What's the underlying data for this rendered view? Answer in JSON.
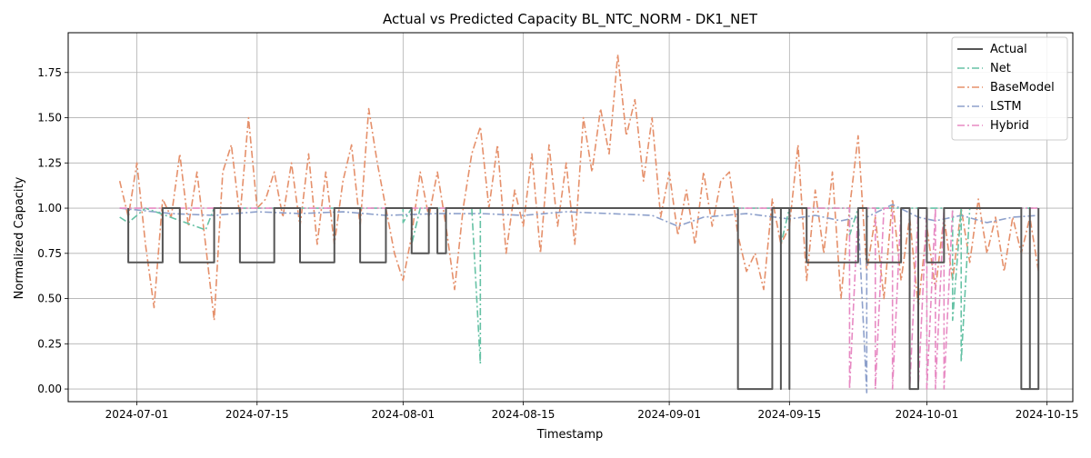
{
  "chart_data": {
    "type": "line",
    "title": "Actual vs Predicted Capacity BL_NTC_NORM - DK1_NET",
    "xlabel": "Timestamp",
    "ylabel": "Normalized Capacity",
    "x_range": [
      "2024-06-23",
      "2024-10-18"
    ],
    "ylim": [
      -0.07,
      1.97
    ],
    "x_ticks": [
      {
        "date": "2024-07-01",
        "label": "2024-07-01"
      },
      {
        "date": "2024-07-15",
        "label": "2024-07-15"
      },
      {
        "date": "2024-08-01",
        "label": "2024-08-01"
      },
      {
        "date": "2024-08-15",
        "label": "2024-08-15"
      },
      {
        "date": "2024-09-01",
        "label": "2024-09-01"
      },
      {
        "date": "2024-09-15",
        "label": "2024-09-15"
      },
      {
        "date": "2024-10-01",
        "label": "2024-10-01"
      },
      {
        "date": "2024-10-15",
        "label": "2024-10-15"
      }
    ],
    "y_ticks": [
      {
        "value": 0.0,
        "label": "0.00"
      },
      {
        "value": 0.25,
        "label": "0.25"
      },
      {
        "value": 0.5,
        "label": "0.50"
      },
      {
        "value": 0.75,
        "label": "0.75"
      },
      {
        "value": 1.0,
        "label": "1.00"
      },
      {
        "value": 1.25,
        "label": "1.25"
      },
      {
        "value": 1.5,
        "label": "1.50"
      },
      {
        "value": 1.75,
        "label": "1.75"
      }
    ],
    "grid": true,
    "legend_position": "top-right",
    "series": [
      {
        "name": "Actual",
        "color": "#555555",
        "style": "solid",
        "points": [
          [
            "2024-06-30",
            1.0
          ],
          [
            "2024-06-30",
            0.7
          ],
          [
            "2024-07-04",
            0.7
          ],
          [
            "2024-07-04",
            1.0
          ],
          [
            "2024-07-06",
            1.0
          ],
          [
            "2024-07-06",
            0.7
          ],
          [
            "2024-07-10",
            0.7
          ],
          [
            "2024-07-10",
            1.0
          ],
          [
            "2024-07-13",
            1.0
          ],
          [
            "2024-07-13",
            0.7
          ],
          [
            "2024-07-17",
            0.7
          ],
          [
            "2024-07-17",
            1.0
          ],
          [
            "2024-07-20",
            1.0
          ],
          [
            "2024-07-20",
            0.7
          ],
          [
            "2024-07-24",
            0.7
          ],
          [
            "2024-07-24",
            1.0
          ],
          [
            "2024-07-27",
            1.0
          ],
          [
            "2024-07-27",
            0.7
          ],
          [
            "2024-07-30",
            0.7
          ],
          [
            "2024-07-30",
            1.0
          ],
          [
            "2024-08-02",
            1.0
          ],
          [
            "2024-08-02",
            0.75
          ],
          [
            "2024-08-04",
            0.75
          ],
          [
            "2024-08-04",
            1.0
          ],
          [
            "2024-08-05",
            1.0
          ],
          [
            "2024-08-05",
            0.75
          ],
          [
            "2024-08-06",
            0.75
          ],
          [
            "2024-08-06",
            1.0
          ],
          [
            "2024-09-09",
            1.0
          ],
          [
            "2024-09-09",
            0.0
          ],
          [
            "2024-09-13",
            0.0
          ],
          [
            "2024-09-13",
            1.0
          ],
          [
            "2024-09-14",
            1.0
          ],
          [
            "2024-09-14",
            0.0
          ],
          [
            "2024-09-14",
            0.0
          ],
          [
            "2024-09-14",
            1.0
          ],
          [
            "2024-09-15",
            1.0
          ],
          [
            "2024-09-15",
            0.0
          ],
          [
            "2024-09-15",
            0.0
          ],
          [
            "2024-09-15",
            1.0
          ],
          [
            "2024-09-17",
            1.0
          ],
          [
            "2024-09-17",
            0.7
          ],
          [
            "2024-09-23",
            0.7
          ],
          [
            "2024-09-23",
            1.0
          ],
          [
            "2024-09-24",
            1.0
          ],
          [
            "2024-09-24",
            0.7
          ],
          [
            "2024-09-28",
            0.7
          ],
          [
            "2024-09-28",
            1.0
          ],
          [
            "2024-09-29",
            1.0
          ],
          [
            "2024-09-29",
            0.0
          ],
          [
            "2024-09-30",
            0.0
          ],
          [
            "2024-09-30",
            1.0
          ],
          [
            "2024-10-01",
            1.0
          ],
          [
            "2024-10-01",
            0.7
          ],
          [
            "2024-10-03",
            0.7
          ],
          [
            "2024-10-03",
            1.0
          ],
          [
            "2024-10-12",
            1.0
          ],
          [
            "2024-10-12",
            0.0
          ],
          [
            "2024-10-13",
            0.0
          ],
          [
            "2024-10-13",
            1.0
          ],
          [
            "2024-10-13",
            1.0
          ],
          [
            "2024-10-13",
            0.0
          ],
          [
            "2024-10-14",
            0.0
          ],
          [
            "2024-10-14",
            1.0
          ]
        ]
      },
      {
        "name": "Net",
        "color": "#66c2a5",
        "style": "dashdot",
        "points": [
          [
            "2024-06-29",
            0.95
          ],
          [
            "2024-06-30",
            0.92
          ],
          [
            "2024-07-02",
            1.0
          ],
          [
            "2024-07-09",
            0.88
          ],
          [
            "2024-07-10",
            1.0
          ],
          [
            "2024-08-01",
            1.0
          ],
          [
            "2024-08-01",
            0.92
          ],
          [
            "2024-08-02",
            1.0
          ],
          [
            "2024-08-02",
            0.8
          ],
          [
            "2024-08-03",
            1.0
          ],
          [
            "2024-08-09",
            1.0
          ],
          [
            "2024-08-10",
            0.14
          ],
          [
            "2024-08-10",
            1.0
          ],
          [
            "2024-09-14",
            1.0
          ],
          [
            "2024-09-14",
            0.8
          ],
          [
            "2024-09-15",
            1.0
          ],
          [
            "2024-09-22",
            1.0
          ],
          [
            "2024-09-22",
            0.85
          ],
          [
            "2024-09-23",
            1.0
          ],
          [
            "2024-10-04",
            1.0
          ],
          [
            "2024-10-04",
            0.38
          ],
          [
            "2024-10-05",
            1.0
          ],
          [
            "2024-10-05",
            0.15
          ],
          [
            "2024-10-06",
            1.0
          ],
          [
            "2024-10-14",
            1.0
          ]
        ]
      },
      {
        "name": "BaseModel",
        "color": "#e5906b",
        "style": "dashdot",
        "points": [
          [
            "2024-06-29",
            1.15
          ],
          [
            "2024-06-30",
            0.95
          ],
          [
            "2024-07-01",
            1.25
          ],
          [
            "2024-07-02",
            0.8
          ],
          [
            "2024-07-03",
            0.45
          ],
          [
            "2024-07-04",
            1.05
          ],
          [
            "2024-07-05",
            0.95
          ],
          [
            "2024-07-06",
            1.3
          ],
          [
            "2024-07-07",
            0.9
          ],
          [
            "2024-07-08",
            1.2
          ],
          [
            "2024-07-09",
            0.8
          ],
          [
            "2024-07-10",
            0.38
          ],
          [
            "2024-07-11",
            1.2
          ],
          [
            "2024-07-12",
            1.35
          ],
          [
            "2024-07-13",
            0.95
          ],
          [
            "2024-07-14",
            1.5
          ],
          [
            "2024-07-15",
            1.0
          ],
          [
            "2024-07-16",
            1.05
          ],
          [
            "2024-07-17",
            1.2
          ],
          [
            "2024-07-18",
            0.95
          ],
          [
            "2024-07-19",
            1.25
          ],
          [
            "2024-07-20",
            0.9
          ],
          [
            "2024-07-21",
            1.3
          ],
          [
            "2024-07-22",
            0.8
          ],
          [
            "2024-07-23",
            1.2
          ],
          [
            "2024-07-24",
            0.8
          ],
          [
            "2024-07-25",
            1.15
          ],
          [
            "2024-07-26",
            1.35
          ],
          [
            "2024-07-27",
            0.9
          ],
          [
            "2024-07-28",
            1.55
          ],
          [
            "2024-07-29",
            1.25
          ],
          [
            "2024-07-30",
            1.0
          ],
          [
            "2024-07-31",
            0.75
          ],
          [
            "2024-08-01",
            0.6
          ],
          [
            "2024-08-02",
            0.85
          ],
          [
            "2024-08-03",
            1.2
          ],
          [
            "2024-08-04",
            0.95
          ],
          [
            "2024-08-05",
            1.2
          ],
          [
            "2024-08-06",
            0.9
          ],
          [
            "2024-08-07",
            0.55
          ],
          [
            "2024-08-08",
            1.0
          ],
          [
            "2024-08-09",
            1.3
          ],
          [
            "2024-08-10",
            1.45
          ],
          [
            "2024-08-11",
            1.0
          ],
          [
            "2024-08-12",
            1.35
          ],
          [
            "2024-08-13",
            0.75
          ],
          [
            "2024-08-14",
            1.1
          ],
          [
            "2024-08-15",
            0.9
          ],
          [
            "2024-08-16",
            1.3
          ],
          [
            "2024-08-17",
            0.75
          ],
          [
            "2024-08-18",
            1.35
          ],
          [
            "2024-08-19",
            0.9
          ],
          [
            "2024-08-20",
            1.25
          ],
          [
            "2024-08-21",
            0.8
          ],
          [
            "2024-08-22",
            1.5
          ],
          [
            "2024-08-23",
            1.2
          ],
          [
            "2024-08-24",
            1.55
          ],
          [
            "2024-08-25",
            1.3
          ],
          [
            "2024-08-26",
            1.85
          ],
          [
            "2024-08-27",
            1.4
          ],
          [
            "2024-08-28",
            1.6
          ],
          [
            "2024-08-29",
            1.15
          ],
          [
            "2024-08-30",
            1.5
          ],
          [
            "2024-08-31",
            0.95
          ],
          [
            "2024-09-01",
            1.2
          ],
          [
            "2024-09-02",
            0.85
          ],
          [
            "2024-09-03",
            1.1
          ],
          [
            "2024-09-04",
            0.8
          ],
          [
            "2024-09-05",
            1.2
          ],
          [
            "2024-09-06",
            0.9
          ],
          [
            "2024-09-07",
            1.15
          ],
          [
            "2024-09-08",
            1.2
          ],
          [
            "2024-09-09",
            0.85
          ],
          [
            "2024-09-10",
            0.65
          ],
          [
            "2024-09-11",
            0.75
          ],
          [
            "2024-09-12",
            0.55
          ],
          [
            "2024-09-13",
            1.05
          ],
          [
            "2024-09-14",
            0.8
          ],
          [
            "2024-09-15",
            0.9
          ],
          [
            "2024-09-16",
            1.35
          ],
          [
            "2024-09-17",
            0.6
          ],
          [
            "2024-09-18",
            1.1
          ],
          [
            "2024-09-19",
            0.75
          ],
          [
            "2024-09-20",
            1.2
          ],
          [
            "2024-09-21",
            0.5
          ],
          [
            "2024-09-22",
            1.0
          ],
          [
            "2024-09-23",
            1.4
          ],
          [
            "2024-09-24",
            0.65
          ],
          [
            "2024-09-25",
            0.95
          ],
          [
            "2024-09-26",
            0.5
          ],
          [
            "2024-09-27",
            1.05
          ],
          [
            "2024-09-28",
            0.6
          ],
          [
            "2024-09-29",
            0.95
          ],
          [
            "2024-09-30",
            0.45
          ],
          [
            "2024-10-01",
            0.9
          ],
          [
            "2024-10-02",
            0.55
          ],
          [
            "2024-10-03",
            0.95
          ],
          [
            "2024-10-04",
            0.6
          ],
          [
            "2024-10-05",
            1.0
          ],
          [
            "2024-10-06",
            0.7
          ],
          [
            "2024-10-07",
            1.05
          ],
          [
            "2024-10-08",
            0.75
          ],
          [
            "2024-10-09",
            0.95
          ],
          [
            "2024-10-10",
            0.65
          ],
          [
            "2024-10-11",
            0.95
          ],
          [
            "2024-10-12",
            0.75
          ],
          [
            "2024-10-13",
            0.95
          ],
          [
            "2024-10-14",
            0.65
          ]
        ]
      },
      {
        "name": "LSTM",
        "color": "#8da0cb",
        "style": "dashdot",
        "points": [
          [
            "2024-06-29",
            1.0
          ],
          [
            "2024-07-05",
            0.97
          ],
          [
            "2024-07-10",
            0.96
          ],
          [
            "2024-07-15",
            0.98
          ],
          [
            "2024-07-20",
            0.97
          ],
          [
            "2024-07-25",
            0.98
          ],
          [
            "2024-07-30",
            0.96
          ],
          [
            "2024-08-05",
            0.97
          ],
          [
            "2024-08-10",
            0.97
          ],
          [
            "2024-08-15",
            0.96
          ],
          [
            "2024-08-20",
            0.98
          ],
          [
            "2024-08-25",
            0.97
          ],
          [
            "2024-08-30",
            0.96
          ],
          [
            "2024-09-02",
            0.9
          ],
          [
            "2024-09-05",
            0.95
          ],
          [
            "2024-09-10",
            0.97
          ],
          [
            "2024-09-15",
            0.94
          ],
          [
            "2024-09-18",
            0.96
          ],
          [
            "2024-09-21",
            0.93
          ],
          [
            "2024-09-23",
            0.95
          ],
          [
            "2024-09-24",
            -0.02
          ],
          [
            "2024-09-24",
            0.95
          ],
          [
            "2024-09-27",
            1.02
          ],
          [
            "2024-09-30",
            0.95
          ],
          [
            "2024-10-02",
            0.93
          ],
          [
            "2024-10-05",
            0.96
          ],
          [
            "2024-10-08",
            0.92
          ],
          [
            "2024-10-11",
            0.95
          ],
          [
            "2024-10-14",
            0.96
          ]
        ]
      },
      {
        "name": "Hybrid",
        "color": "#e78ac3",
        "style": "dashdot",
        "points": [
          [
            "2024-06-29",
            1.0
          ],
          [
            "2024-09-22",
            1.0
          ],
          [
            "2024-09-22",
            0.0
          ],
          [
            "2024-09-23",
            1.0
          ],
          [
            "2024-09-25",
            1.0
          ],
          [
            "2024-09-25",
            0.0
          ],
          [
            "2024-09-26",
            1.0
          ],
          [
            "2024-09-27",
            1.0
          ],
          [
            "2024-09-27",
            0.0
          ],
          [
            "2024-09-28",
            1.0
          ],
          [
            "2024-09-29",
            1.0
          ],
          [
            "2024-09-29",
            0.0
          ],
          [
            "2024-09-30",
            1.0
          ],
          [
            "2024-09-30",
            0.0
          ],
          [
            "2024-10-01",
            1.0
          ],
          [
            "2024-10-01",
            0.0
          ],
          [
            "2024-10-02",
            1.0
          ],
          [
            "2024-10-02",
            0.0
          ],
          [
            "2024-10-03",
            1.0
          ],
          [
            "2024-10-03",
            0.0
          ],
          [
            "2024-10-04",
            1.0
          ],
          [
            "2024-10-14",
            1.0
          ]
        ]
      }
    ]
  }
}
